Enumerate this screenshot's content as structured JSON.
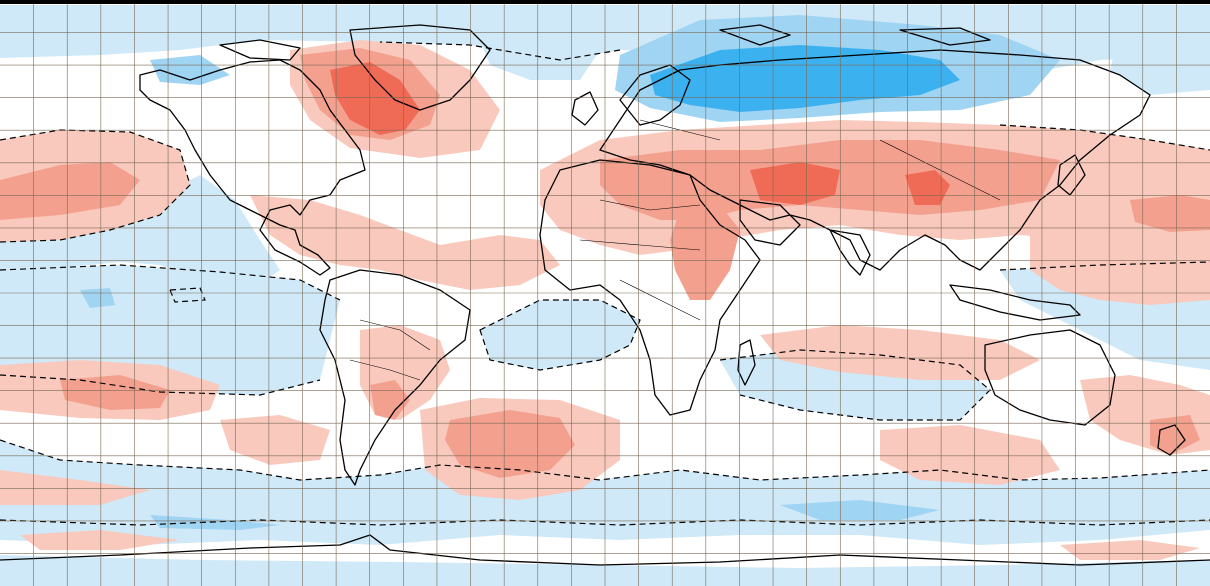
{
  "map": {
    "projection": "equirectangular",
    "field": "anomaly",
    "colors": {
      "warm_1": "#f9c9bd",
      "warm_2": "#f4a08f",
      "warm_3": "#ef6b55",
      "cool_1": "#cfe9f8",
      "cool_2": "#9fd4f3",
      "cool_3": "#3cb1f0",
      "background": "#ffffff",
      "grid": "#7a6a55",
      "coast": "#000000",
      "contour": "#000000"
    },
    "grid": {
      "visible": true,
      "spacing_deg": 10
    },
    "contour_style": "dashed",
    "top_border": true
  }
}
